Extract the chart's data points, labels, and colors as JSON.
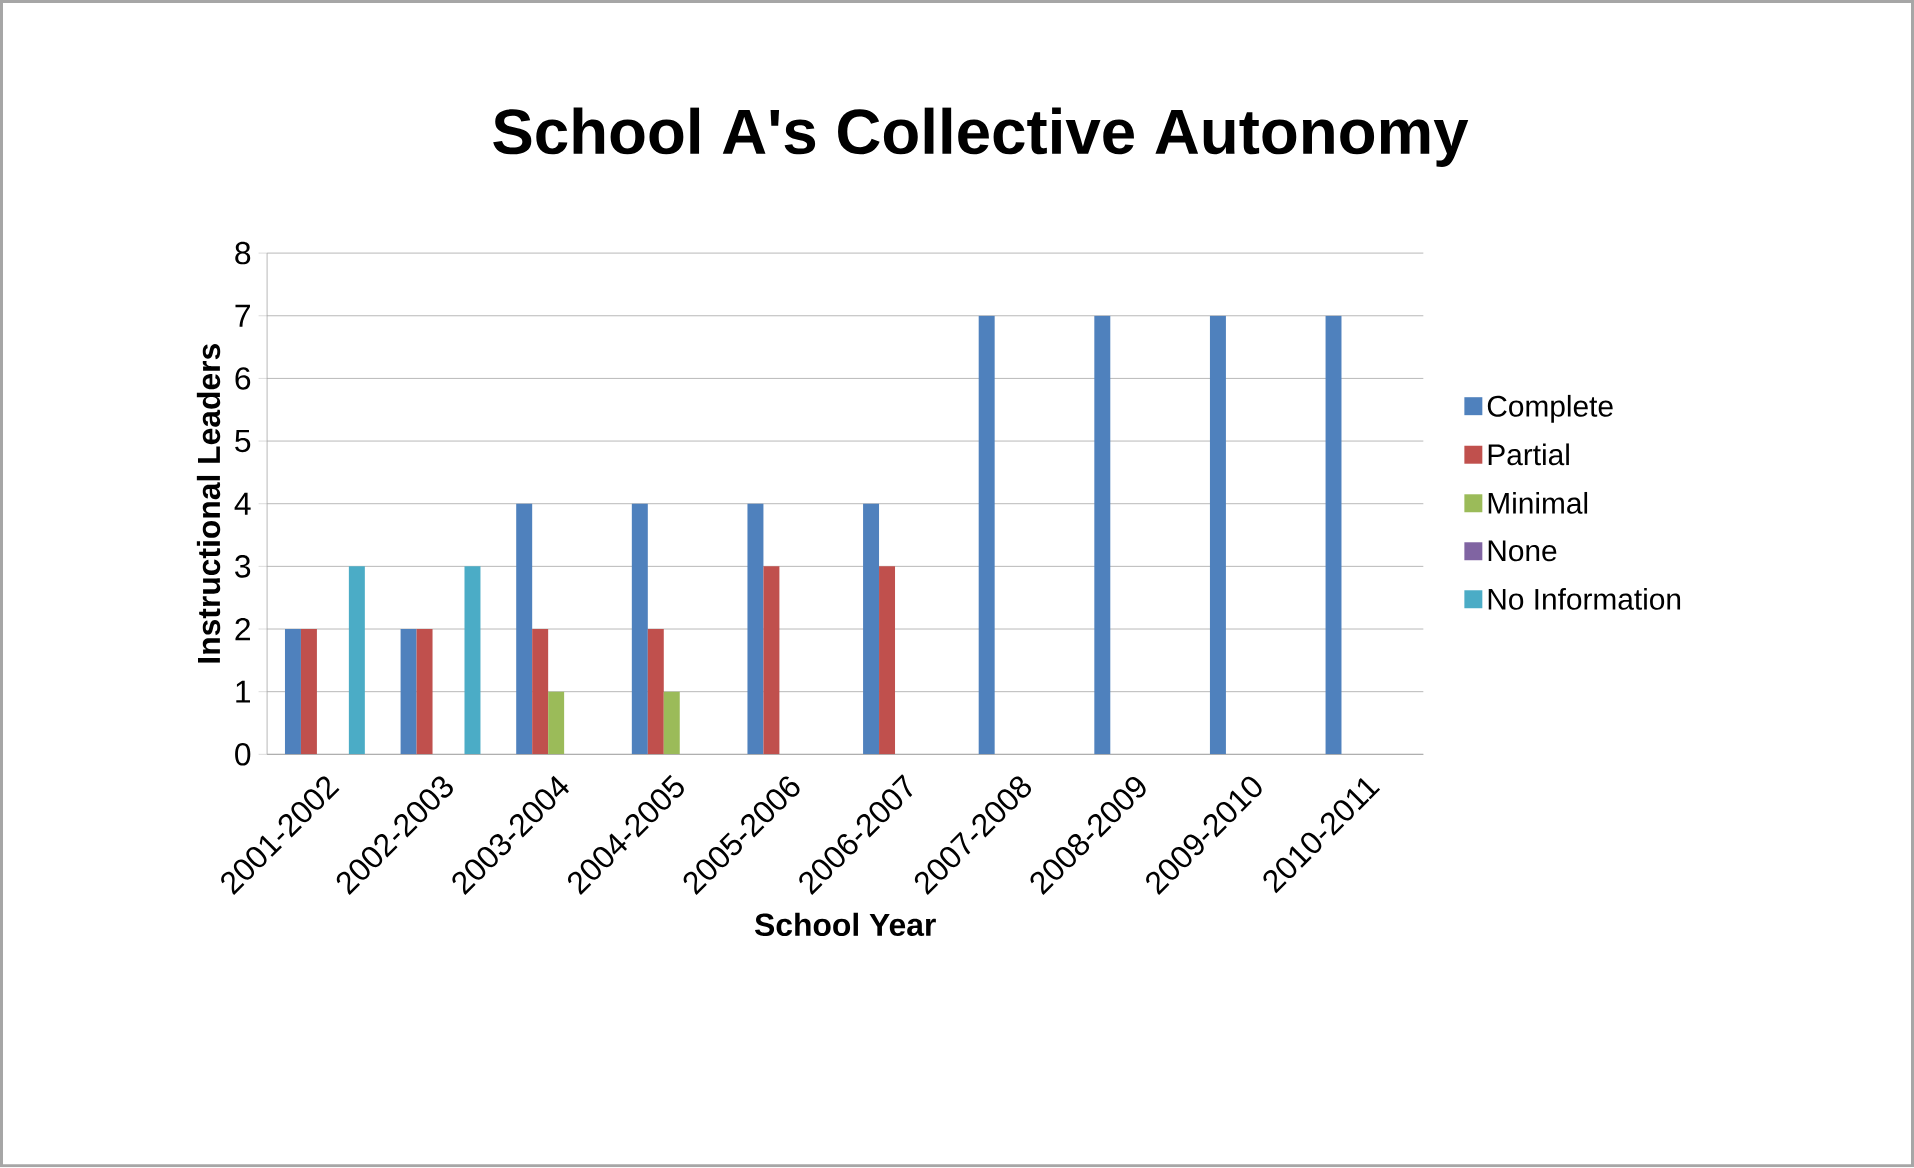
{
  "chart_data": {
    "type": "bar",
    "title": "School A's Collective Autonomy",
    "xlabel": "School Year",
    "ylabel": "Instructional Leaders",
    "categories": [
      "2001-2002",
      "2002-2003",
      "2003-2004",
      "2004-2005",
      "2005-2006",
      "2006-2007",
      "2007-2008",
      "2008-2009",
      "2009-2010",
      "2010-2011"
    ],
    "series": [
      {
        "name": "Complete",
        "color": "#4f81bd",
        "values": [
          2,
          2,
          4,
          4,
          4,
          4,
          7,
          7,
          7,
          7
        ]
      },
      {
        "name": "Partial",
        "color": "#c0504d",
        "values": [
          2,
          2,
          2,
          2,
          3,
          3,
          0,
          0,
          0,
          0
        ]
      },
      {
        "name": "Minimal",
        "color": "#9bbb59",
        "values": [
          0,
          0,
          1,
          1,
          0,
          0,
          0,
          0,
          0,
          0
        ]
      },
      {
        "name": "None",
        "color": "#8064a2",
        "values": [
          0,
          0,
          0,
          0,
          0,
          0,
          0,
          0,
          0,
          0
        ]
      },
      {
        "name": "No Information",
        "color": "#4bacc6",
        "values": [
          3,
          3,
          0,
          0,
          0,
          0,
          0,
          0,
          0,
          0
        ]
      }
    ],
    "ylim": [
      0,
      8
    ],
    "yticks": [
      0,
      1,
      2,
      3,
      4,
      5,
      6,
      7,
      8
    ],
    "grid": "y",
    "legend": "right"
  }
}
